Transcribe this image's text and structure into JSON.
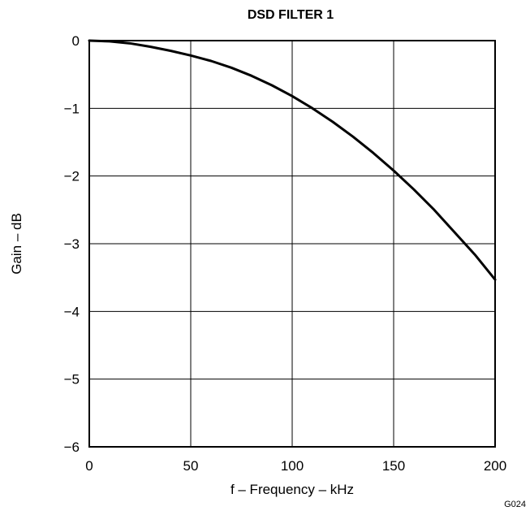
{
  "chart_data": {
    "type": "line",
    "title": "DSD FILTER 1",
    "xlabel": "f – Frequency – kHz",
    "ylabel": "Gain – dB",
    "xlim": [
      0,
      200
    ],
    "ylim": [
      -6,
      0
    ],
    "xticks": [
      0,
      50,
      100,
      150,
      200
    ],
    "yticks": [
      0,
      -1,
      -2,
      -3,
      -4,
      -5,
      -6
    ],
    "xtick_labels": [
      "0",
      "50",
      "100",
      "150",
      "200"
    ],
    "ytick_labels": [
      "0",
      "−1",
      "−2",
      "−3",
      "−4",
      "−5",
      "−6"
    ],
    "grid": true,
    "series": [
      {
        "color": "#000000",
        "x": [
          0,
          10,
          20,
          30,
          40,
          50,
          60,
          70,
          80,
          90,
          100,
          110,
          120,
          130,
          140,
          150,
          160,
          170,
          180,
          190,
          200
        ],
        "y": [
          0,
          -0.01,
          -0.04,
          -0.09,
          -0.15,
          -0.22,
          -0.3,
          -0.4,
          -0.52,
          -0.66,
          -0.82,
          -1.0,
          -1.2,
          -1.42,
          -1.66,
          -1.92,
          -2.2,
          -2.5,
          -2.83,
          -3.16,
          -3.53
        ]
      }
    ]
  },
  "figure_code": "G024"
}
